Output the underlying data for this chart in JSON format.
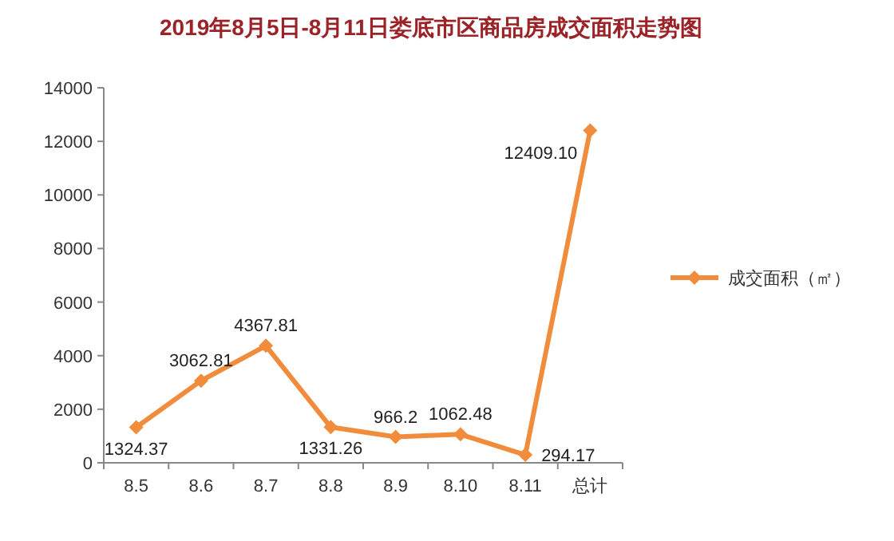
{
  "chart_data": {
    "type": "line",
    "title": "2019年8月5日-8月11日娄底市区商品房成交面积走势图",
    "categories": [
      "8.5",
      "8.6",
      "8.7",
      "8.8",
      "8.9",
      "8.10",
      "8.11",
      "总计"
    ],
    "series": [
      {
        "name": "成交面积（㎡）",
        "color": "#f08c3c",
        "values": [
          1324.37,
          3062.81,
          4367.81,
          1331.26,
          966.2,
          1062.48,
          294.17,
          12409.1
        ],
        "value_labels": [
          "1324.37",
          "3062.81",
          "4367.81",
          "1331.26",
          "966.2",
          "1062.48",
          "294.17",
          "12409.10"
        ]
      }
    ],
    "ylim": [
      0,
      14000
    ],
    "yticks": [
      0,
      2000,
      4000,
      6000,
      8000,
      10000,
      12000,
      14000
    ],
    "marker": "diamond",
    "legend": "right",
    "grid": false
  }
}
